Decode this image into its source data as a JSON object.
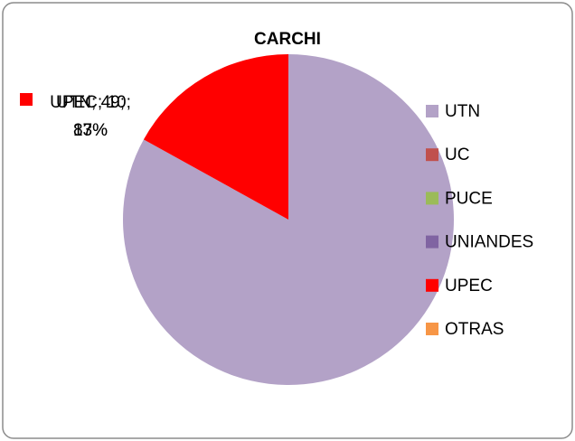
{
  "chart_data": {
    "type": "pie",
    "title": "CARCHI",
    "categories": [
      "UTN",
      "UC",
      "PUCE",
      "UNIANDES",
      "UPEC",
      "OTRAS"
    ],
    "values": [
      49,
      0,
      0,
      0,
      10,
      0
    ],
    "value_labels": [
      "UTN; 49; 83%",
      null,
      null,
      null,
      "UPEC; 10; 17%",
      null
    ],
    "colors": [
      "#b3a2c7",
      "#c0504d",
      "#9bbb59",
      "#8064a2",
      "#ff0000",
      "#f79646"
    ],
    "legend": "right"
  }
}
